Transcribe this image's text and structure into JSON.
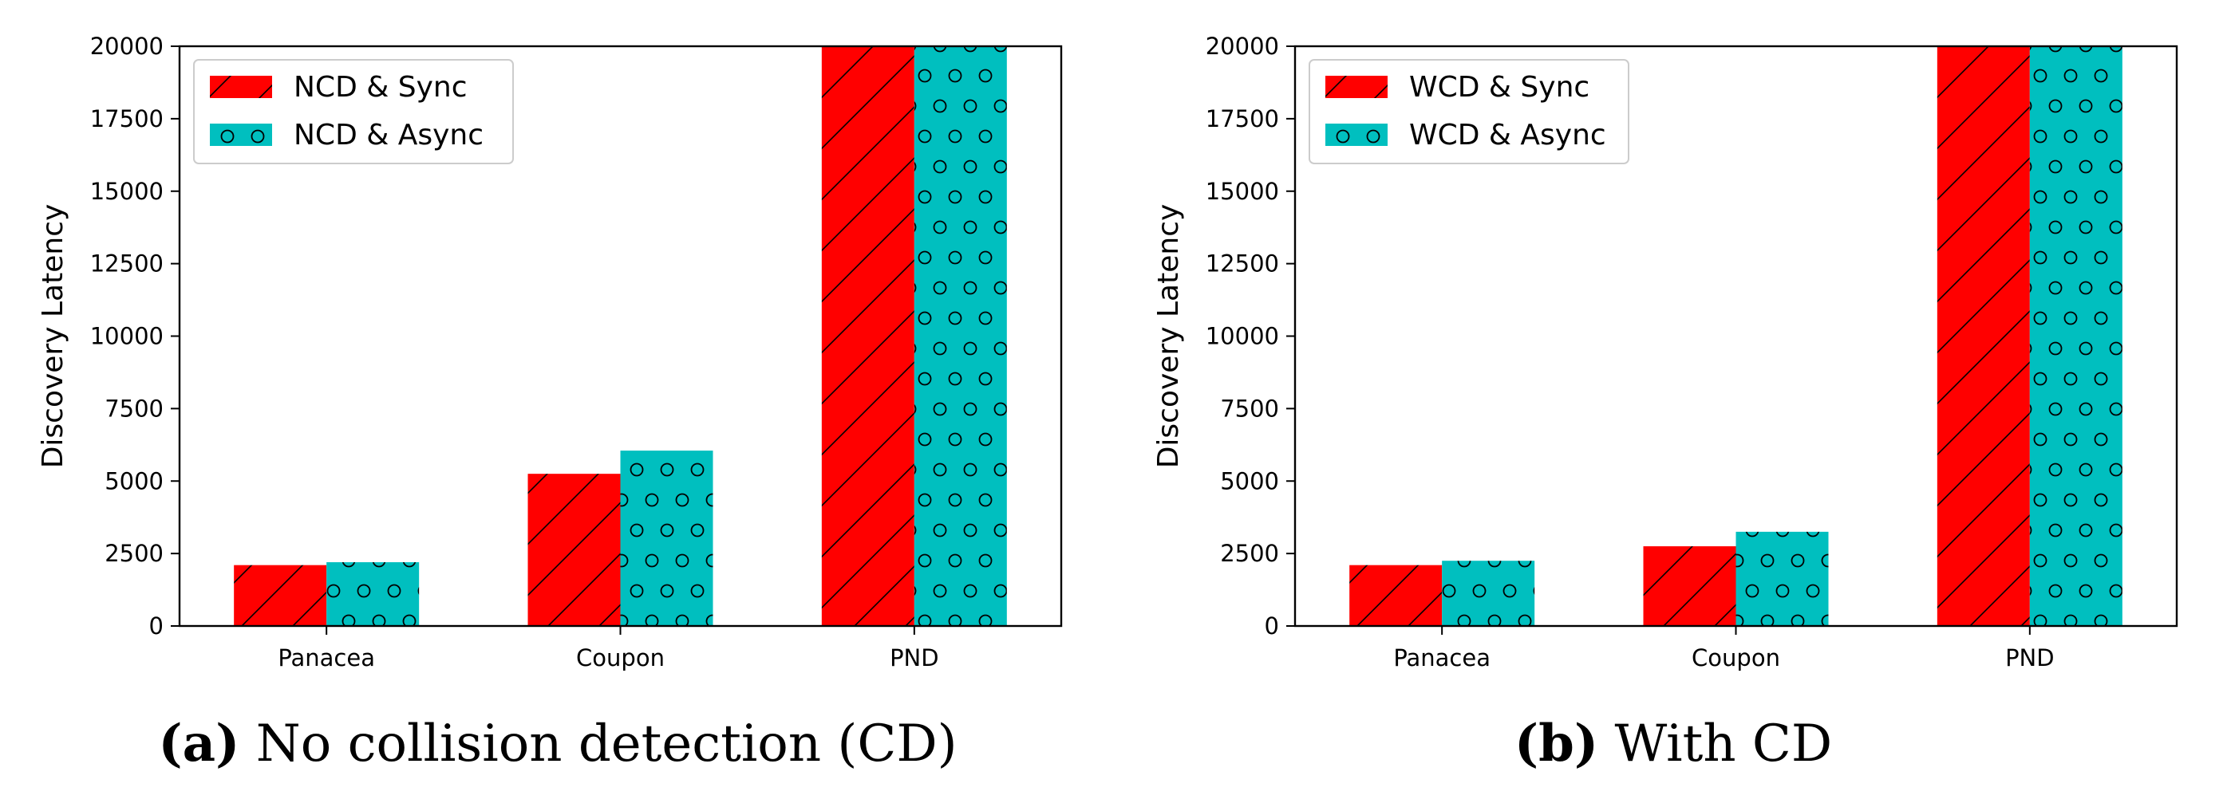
{
  "colors": {
    "sync": "#ff0000",
    "async": "#00bfbf",
    "axis": "#000000",
    "legend_border": "#cccccc"
  },
  "chart_data": [
    {
      "type": "bar",
      "caption_letter": "(a)",
      "caption_text": "No collision detection (CD)",
      "title": "",
      "xlabel": "",
      "ylabel": "Discovery Latency",
      "ylim": [
        0,
        20000
      ],
      "yticks": [
        "0",
        "2500",
        "5000",
        "7500",
        "10000",
        "12500",
        "15000",
        "17500",
        "20000"
      ],
      "categories": [
        "Panacea",
        "Coupon",
        "PND"
      ],
      "legend_position": "upper-left",
      "series": [
        {
          "name": "NCD & Sync",
          "pattern": "hatch",
          "values": [
            2100,
            5250,
            20000
          ]
        },
        {
          "name": "NCD & Async",
          "pattern": "dots",
          "values": [
            2200,
            6050,
            20000
          ]
        }
      ]
    },
    {
      "type": "bar",
      "caption_letter": "(b)",
      "caption_text": "With CD",
      "title": "",
      "xlabel": "",
      "ylabel": "Discovery Latency",
      "ylim": [
        0,
        20000
      ],
      "yticks": [
        "0",
        "2500",
        "5000",
        "7500",
        "10000",
        "12500",
        "15000",
        "17500",
        "20000"
      ],
      "categories": [
        "Panacea",
        "Coupon",
        "PND"
      ],
      "legend_position": "upper-left",
      "series": [
        {
          "name": "WCD & Sync",
          "pattern": "hatch",
          "values": [
            2100,
            2750,
            20000
          ]
        },
        {
          "name": "WCD & Async",
          "pattern": "dots",
          "values": [
            2250,
            3250,
            20000
          ]
        }
      ]
    }
  ]
}
